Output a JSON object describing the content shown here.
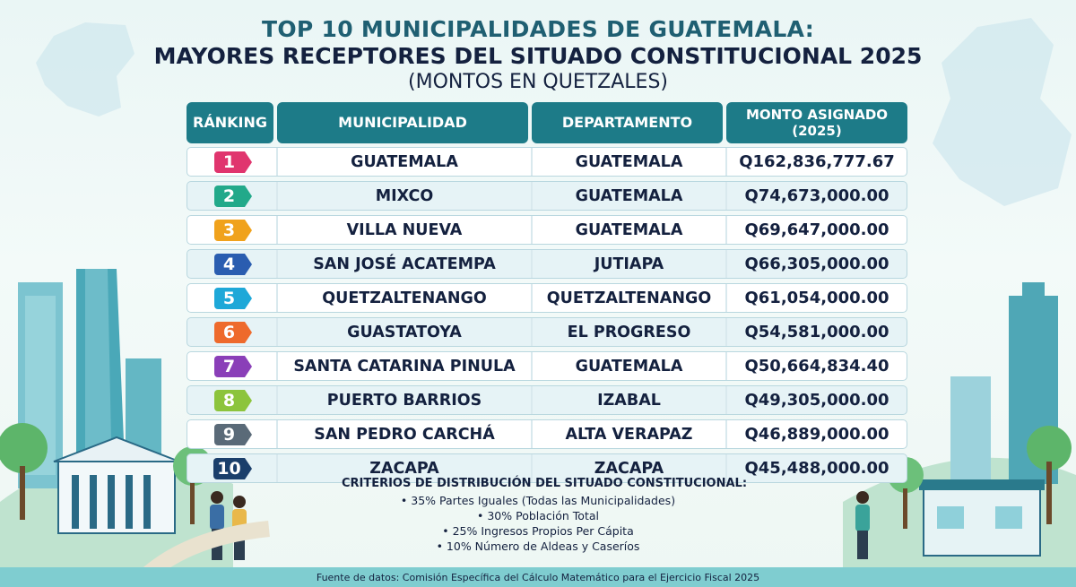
{
  "header": {
    "title_line1": "TOP 10 MUNICIPALIDADES DE GUATEMALA:",
    "title_line2": "MAYORES RECEPTORES DEL SITUADO CONSTITUCIONAL 2025",
    "subtitle": "(MONTOS EN QUETZALES)"
  },
  "table": {
    "headers": [
      "RÁNKING",
      "MUNICIPALIDAD",
      "DEPARTAMENTO",
      "MONTO ASIGNADO\n(2025)"
    ],
    "rows": [
      {
        "rank": "1",
        "municipality": "GUATEMALA",
        "department": "GUATEMALA",
        "amount": "Q162,836,777.67",
        "badge_color": "#e0356e"
      },
      {
        "rank": "2",
        "municipality": "MIXCO",
        "department": "GUATEMALA",
        "amount": "Q74,673,000.00",
        "badge_color": "#22a98a"
      },
      {
        "rank": "3",
        "municipality": "VILLA NUEVA",
        "department": "GUATEMALA",
        "amount": "Q69,647,000.00",
        "badge_color": "#f0a21c"
      },
      {
        "rank": "4",
        "municipality": "SAN JOSÉ ACATEMPA",
        "department": "JUTIAPA",
        "amount": "Q66,305,000.00",
        "badge_color": "#2a5db0"
      },
      {
        "rank": "5",
        "municipality": "QUETZALTENANGO",
        "department": "QUETZALTENANGO",
        "amount": "Q61,054,000.00",
        "badge_color": "#1ea8d8"
      },
      {
        "rank": "6",
        "municipality": "GUASTATOYA",
        "department": "EL PROGRESO",
        "amount": "Q54,581,000.00",
        "badge_color": "#ee6a2c"
      },
      {
        "rank": "7",
        "municipality": "SANTA CATARINA PINULA",
        "department": "GUATEMALA",
        "amount": "Q50,664,834.40",
        "badge_color": "#8a3fb8"
      },
      {
        "rank": "8",
        "municipality": "PUERTO BARRIOS",
        "department": "IZABAL",
        "amount": "Q49,305,000.00",
        "badge_color": "#8cc43c"
      },
      {
        "rank": "9",
        "municipality": "SAN PEDRO CARCHÁ",
        "department": "ALTA VERAPAZ",
        "amount": "Q46,889,000.00",
        "badge_color": "#5a6a78"
      },
      {
        "rank": "10",
        "municipality": "ZACAPA",
        "department": "ZACAPA",
        "amount": "Q45,488,000.00",
        "badge_color": "#1b3f6b"
      }
    ]
  },
  "criteria": {
    "title": "CRITERIOS DE DISTRIBUCIÓN DEL SITUADO CONSTITUCIONAL:",
    "items": [
      "35% Partes Iguales (Todas las Municipalidades)",
      "30% Población Total",
      "25% Ingresos Propios Per Cápita",
      "10% Número de Aldeas y Caseríos"
    ]
  },
  "source": "Fuente de datos: Comisión Específica del Cálculo Matemático para el Ejercicio Fiscal 2025",
  "colors": {
    "header_teal": "#1d7b88",
    "title_teal": "#1f5f72",
    "text_navy": "#14213f",
    "footer_band": "#7fcdd0"
  }
}
